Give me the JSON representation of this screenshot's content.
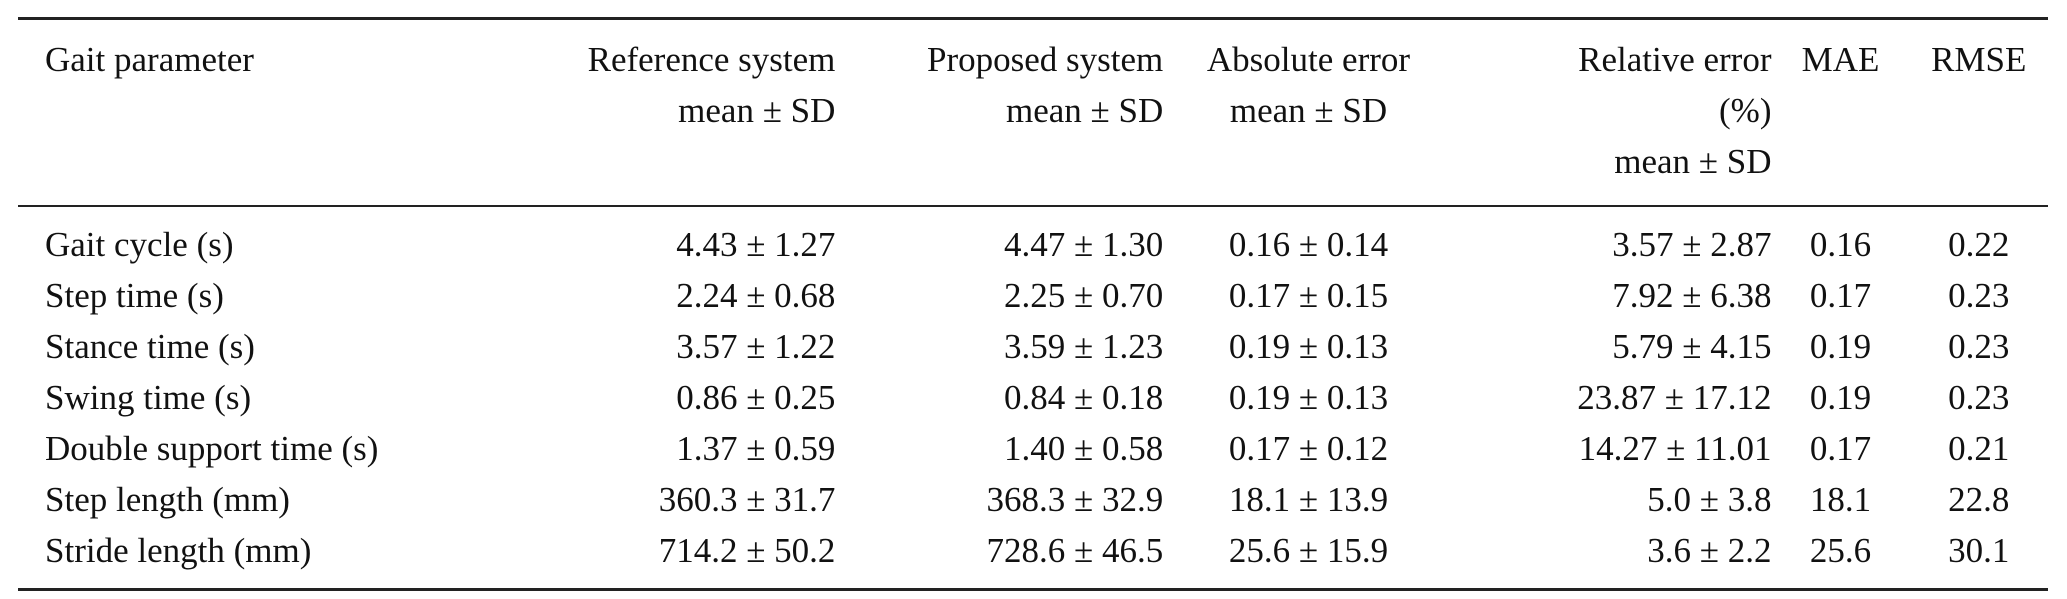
{
  "table": {
    "columns": [
      {
        "key": "param",
        "lines": [
          "Gait parameter"
        ]
      },
      {
        "key": "ref",
        "lines": [
          "Reference system",
          "mean ± SD"
        ]
      },
      {
        "key": "prop",
        "lines": [
          "Proposed system",
          "mean ± SD"
        ]
      },
      {
        "key": "abs",
        "lines": [
          "Absolute error",
          "mean ± SD"
        ]
      },
      {
        "key": "rel",
        "lines": [
          "Relative error",
          "(%)",
          "mean ± SD"
        ]
      },
      {
        "key": "mae",
        "lines": [
          "MAE"
        ]
      },
      {
        "key": "rmse",
        "lines": [
          "RMSE"
        ]
      }
    ],
    "rows": [
      {
        "param": "Gait cycle (s)",
        "ref": "4.43 ± 1.27",
        "prop": "4.47 ± 1.30",
        "abs": "0.16 ± 0.14",
        "rel": "3.57 ± 2.87",
        "mae": "0.16",
        "rmse": "0.22"
      },
      {
        "param": "Step time (s)",
        "ref": "2.24 ± 0.68",
        "prop": "2.25 ± 0.70",
        "abs": "0.17 ± 0.15",
        "rel": "7.92 ± 6.38",
        "mae": "0.17",
        "rmse": "0.23"
      },
      {
        "param": "Stance time (s)",
        "ref": "3.57 ± 1.22",
        "prop": "3.59 ± 1.23",
        "abs": "0.19 ± 0.13",
        "rel": "5.79 ± 4.15",
        "mae": "0.19",
        "rmse": "0.23"
      },
      {
        "param": "Swing time (s)",
        "ref": "0.86 ± 0.25",
        "prop": "0.84 ± 0.18",
        "abs": "0.19 ± 0.13",
        "rel": "23.87 ± 17.12",
        "mae": "0.19",
        "rmse": "0.23"
      },
      {
        "param": "Double support time (s)",
        "ref": "1.37 ± 0.59",
        "prop": "1.40 ± 0.58",
        "abs": "0.17 ± 0.12",
        "rel": "14.27 ± 11.01",
        "mae": "0.17",
        "rmse": "0.21"
      },
      {
        "param": "Step length (mm)",
        "ref": "360.3 ± 31.7",
        "prop": "368.3 ± 32.9",
        "abs": "18.1 ± 13.9",
        "rel": "5.0 ± 3.8",
        "mae": "18.1",
        "rmse": "22.8"
      },
      {
        "param": "Stride length (mm)",
        "ref": "714.2 ± 50.2",
        "prop": "728.6 ± 46.5",
        "abs": "25.6 ± 15.9",
        "rel": "3.6 ± 2.2",
        "mae": "25.6",
        "rmse": "30.1"
      }
    ]
  }
}
